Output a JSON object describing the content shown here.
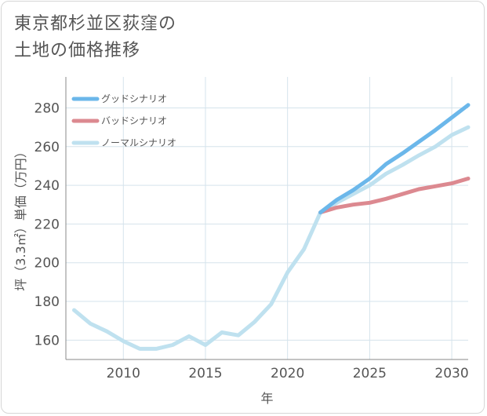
{
  "chart_data": {
    "type": "line",
    "title_lines": [
      "東京都杉並区荻窪の",
      "土地の価格推移"
    ],
    "xlabel": "年",
    "ylabel": "坪（3.3㎡）単価（万円）",
    "xlim": [
      2006.5,
      2031
    ],
    "ylim": [
      150,
      296
    ],
    "x_ticks": [
      2010,
      2015,
      2020,
      2025,
      2030
    ],
    "y_ticks": [
      160,
      180,
      200,
      220,
      240,
      260,
      280
    ],
    "colors": {
      "good": "#6bb7ea",
      "bad": "#dc8990",
      "normal": "#bfe1ef",
      "grid": "#d5e3ec",
      "axis": "#888888"
    },
    "series": [
      {
        "name": "グッドシナリオ",
        "key": "good",
        "x": [
          2022,
          2023,
          2024,
          2025,
          2026,
          2027,
          2028,
          2029,
          2030,
          2031
        ],
        "values": [
          226,
          232.5,
          237.5,
          243.5,
          251,
          256.5,
          262.5,
          268.5,
          275,
          281.5
        ]
      },
      {
        "name": "バッドシナリオ",
        "key": "bad",
        "x": [
          2022,
          2023,
          2024,
          2025,
          2026,
          2027,
          2028,
          2029,
          2030,
          2031
        ],
        "values": [
          226,
          228.5,
          230,
          231,
          233,
          235.5,
          238,
          239.5,
          241,
          243.5
        ]
      },
      {
        "name": "ノーマルシナリオ",
        "key": "normal",
        "x": [
          2007,
          2008,
          2009,
          2010,
          2011,
          2012,
          2013,
          2014,
          2015,
          2016,
          2017,
          2018,
          2019,
          2020,
          2021,
          2022,
          2023,
          2024,
          2025,
          2026,
          2027,
          2028,
          2029,
          2030,
          2031
        ],
        "values": [
          175.5,
          168.5,
          164.5,
          159.5,
          155.5,
          155.5,
          157.5,
          162,
          157.5,
          164,
          162.5,
          169.5,
          178.5,
          195,
          207,
          226,
          231,
          235.5,
          240,
          246,
          250.5,
          255.5,
          260,
          266,
          270
        ]
      }
    ],
    "legend_position": "top-left"
  }
}
